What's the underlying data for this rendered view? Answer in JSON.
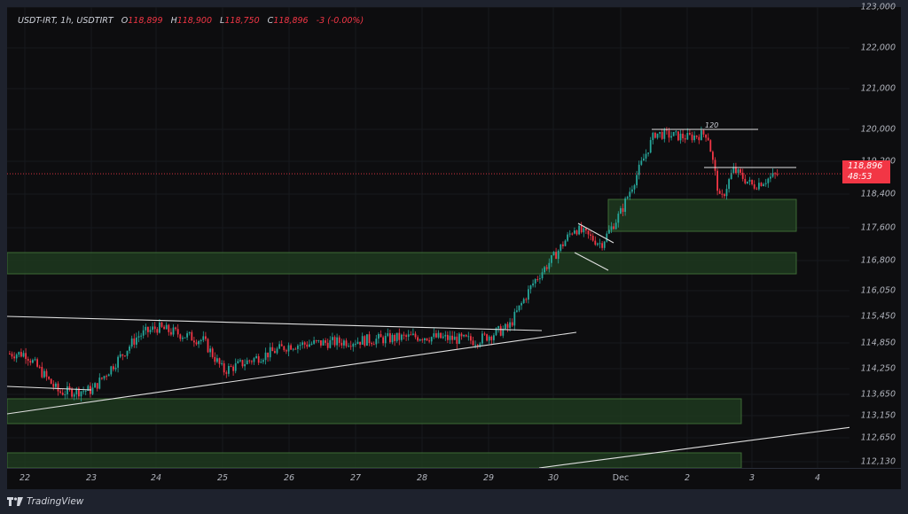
{
  "header": {
    "symbol": "USDT-IRT, 1h, USDTIRT",
    "open_label": "O",
    "open": "118,899",
    "high_label": "H",
    "high": "118,900",
    "low_label": "L",
    "low": "118,750",
    "close_label": "C",
    "close": "118,896",
    "change": "-3 (-0.00%)"
  },
  "price_badge": {
    "price": "118,896",
    "countdown": "48:53"
  },
  "footer": {
    "brand": "TradingView"
  },
  "colors": {
    "up": "#26a69a",
    "down": "#f23645",
    "zone_fill": "#1f3a1f",
    "zone_border": "#3d6b35",
    "line": "#e0e0e0",
    "background": "#0d0d0f"
  },
  "annotation_label": "120",
  "chart_data": {
    "type": "candlestick",
    "title": "USDT-IRT, 1h, USDTIRT",
    "xlabel": "",
    "ylabel": "",
    "x_ticks": [
      "22",
      "23",
      "24",
      "25",
      "26",
      "27",
      "28",
      "29",
      "30",
      "Dec",
      "2",
      "3",
      "4"
    ],
    "y_ticks": [
      "123,000",
      "122,000",
      "121,000",
      "120,000",
      "119,200",
      "118,400",
      "117,600",
      "116,800",
      "116,050",
      "115,450",
      "114,850",
      "114,250",
      "113,650",
      "113,150",
      "112,650",
      "112,130"
    ],
    "ylim": [
      112000,
      123000
    ],
    "last_price": 118896,
    "ohlc": {
      "open": 118899,
      "high": 118900,
      "low": 118750,
      "close": 118896,
      "change": -3,
      "change_pct": -0.0
    },
    "approx_path": [
      {
        "x": "22",
        "price": 114600
      },
      {
        "x": "22.5",
        "price": 113700
      },
      {
        "x": "23",
        "price": 113750
      },
      {
        "x": "23.7",
        "price": 115000
      },
      {
        "x": "24",
        "price": 115200
      },
      {
        "x": "24.7",
        "price": 114900
      },
      {
        "x": "25",
        "price": 114200
      },
      {
        "x": "26",
        "price": 114800
      },
      {
        "x": "27",
        "price": 114900
      },
      {
        "x": "28",
        "price": 115000
      },
      {
        "x": "28.8",
        "price": 114900
      },
      {
        "x": "29.3",
        "price": 115200
      },
      {
        "x": "29.7",
        "price": 116300
      },
      {
        "x": "30",
        "price": 116900
      },
      {
        "x": "30.3",
        "price": 117600
      },
      {
        "x": "30.7",
        "price": 117200
      },
      {
        "x": "Dec",
        "price": 118000
      },
      {
        "x": "Dec.5",
        "price": 119900
      },
      {
        "x": "2",
        "price": 119800
      },
      {
        "x": "2.3",
        "price": 119900
      },
      {
        "x": "2.5",
        "price": 118200
      },
      {
        "x": "2.7",
        "price": 119000
      },
      {
        "x": "3",
        "price": 118600
      },
      {
        "x": "3.4",
        "price": 118896
      }
    ],
    "zones": [
      {
        "name": "demand-zone-1",
        "from": 117700,
        "to": 118250
      },
      {
        "name": "demand-zone-2",
        "from": 116500,
        "to": 116950
      },
      {
        "name": "demand-zone-3",
        "from": 113100,
        "to": 113600
      },
      {
        "name": "demand-zone-4",
        "from": 112000,
        "to": 112300
      }
    ],
    "annotations": [
      "triangle pattern 22-29",
      "bull flag near 30",
      "resistance line 120,000 labeled 120",
      "resistance line ~119,000",
      "rising trendline lower right"
    ],
    "grid": true,
    "legend_position": "top-left"
  }
}
